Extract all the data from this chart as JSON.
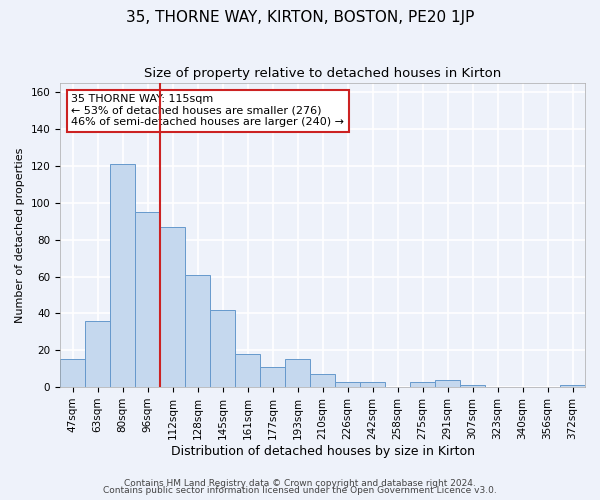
{
  "title": "35, THORNE WAY, KIRTON, BOSTON, PE20 1JP",
  "subtitle": "Size of property relative to detached houses in Kirton",
  "xlabel": "Distribution of detached houses by size in Kirton",
  "ylabel": "Number of detached properties",
  "categories": [
    "47sqm",
    "63sqm",
    "80sqm",
    "96sqm",
    "112sqm",
    "128sqm",
    "145sqm",
    "161sqm",
    "177sqm",
    "193sqm",
    "210sqm",
    "226sqm",
    "242sqm",
    "258sqm",
    "275sqm",
    "291sqm",
    "307sqm",
    "323sqm",
    "340sqm",
    "356sqm",
    "372sqm"
  ],
  "values": [
    15,
    36,
    121,
    95,
    87,
    61,
    42,
    18,
    11,
    15,
    7,
    3,
    3,
    0,
    3,
    4,
    1,
    0,
    0,
    0,
    1
  ],
  "bar_color": "#c5d8ee",
  "bar_edge_color": "#6699cc",
  "background_color": "#eef2fa",
  "grid_color": "#ffffff",
  "vline_color": "#cc2222",
  "annotation_text": "35 THORNE WAY: 115sqm\n← 53% of detached houses are smaller (276)\n46% of semi-detached houses are larger (240) →",
  "annotation_box_color": "#ffffff",
  "annotation_box_edge": "#cc2222",
  "footer_line1": "Contains HM Land Registry data © Crown copyright and database right 2024.",
  "footer_line2": "Contains public sector information licensed under the Open Government Licence v3.0.",
  "ylim": [
    0,
    165
  ],
  "yticks": [
    0,
    20,
    40,
    60,
    80,
    100,
    120,
    140,
    160
  ],
  "title_fontsize": 11,
  "subtitle_fontsize": 9.5,
  "ylabel_fontsize": 8,
  "xlabel_fontsize": 9,
  "tick_fontsize": 7.5,
  "ann_fontsize": 8,
  "footer_fontsize": 6.5
}
